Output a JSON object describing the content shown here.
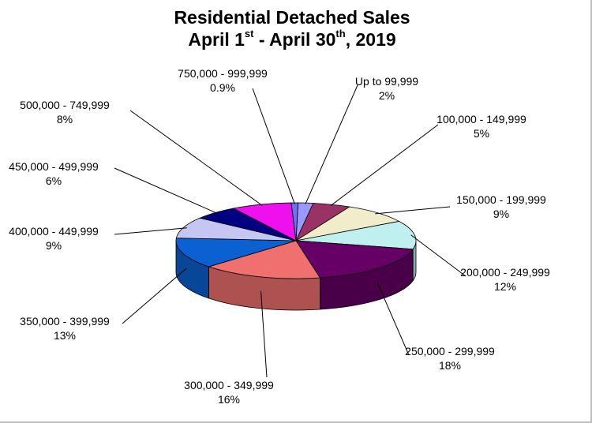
{
  "title": {
    "line1": "Residential Detached Sales",
    "line2_a": "April 1",
    "line2_sup1": "st",
    "line2_b": " - April 30",
    "line2_sup2": "th",
    "line2_c": ", 2019"
  },
  "chart_data": {
    "type": "pie",
    "style": "3d",
    "legend": "none",
    "slices": [
      {
        "label": "Up to 99,999",
        "pct_label": "2%",
        "value": 2,
        "color": "#9999ff"
      },
      {
        "label": "100,000 - 149,999",
        "pct_label": "5%",
        "value": 5,
        "color": "#993366"
      },
      {
        "label": "150,000 - 199,999",
        "pct_label": "9%",
        "value": 9,
        "color": "#f1ecc9"
      },
      {
        "label": "200,000 - 249,999",
        "pct_label": "12%",
        "value": 12,
        "color": "#bff0ef"
      },
      {
        "label": "250,000 - 299,999",
        "pct_label": "18%",
        "value": 18,
        "color": "#660066"
      },
      {
        "label": "300,000 - 349,999",
        "pct_label": "16%",
        "value": 16,
        "color": "#f07070"
      },
      {
        "label": "350,000 - 399,999",
        "pct_label": "13%",
        "value": 13,
        "color": "#0b61d2"
      },
      {
        "label": "400,000 - 449,999",
        "pct_label": "9%",
        "value": 9,
        "color": "#c6c6f2"
      },
      {
        "label": "450,000 - 499,999",
        "pct_label": "6%",
        "value": 6,
        "color": "#000080"
      },
      {
        "label": "500,000 - 749,999",
        "pct_label": "8%",
        "value": 8,
        "color": "#ee11ee"
      },
      {
        "label": "750,000 - 999,999",
        "pct_label": "0.9%",
        "value": 0.9,
        "color": "#6f6ff0"
      }
    ]
  }
}
